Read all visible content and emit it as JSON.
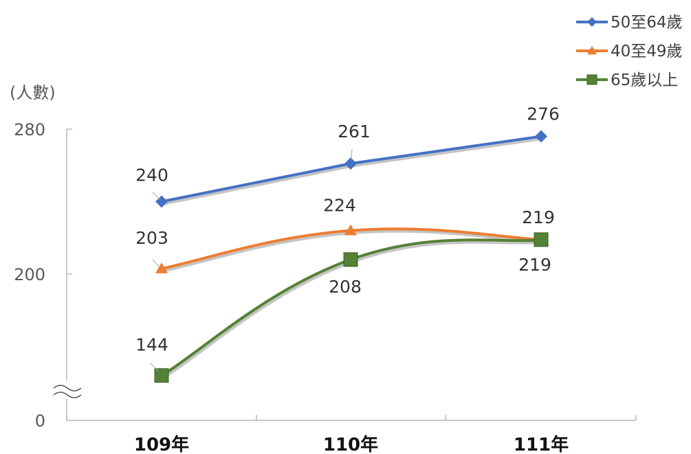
{
  "chart_data": {
    "type": "line",
    "ylabel": "(人數)",
    "categories": [
      "109年",
      "110年",
      "111年"
    ],
    "yticks": [
      "0",
      "200",
      "280"
    ],
    "axis_break": true,
    "grid": false,
    "legend_position": "top-right",
    "series": [
      {
        "name": "50至64歲",
        "values": [
          240,
          261,
          276
        ],
        "labels": [
          "240",
          "261",
          "276"
        ],
        "color": "#4472C4",
        "marker": "diamond",
        "smooth": false
      },
      {
        "name": "40至49歲",
        "values": [
          203,
          224,
          219
        ],
        "labels": [
          "203",
          "224",
          "219"
        ],
        "color": "#ED7D31",
        "marker": "triangle",
        "smooth": true
      },
      {
        "name": "65歲以上",
        "values": [
          144,
          208,
          219
        ],
        "labels": [
          "144",
          "208",
          "219"
        ],
        "color": "#548235",
        "marker": "square",
        "smooth": true
      }
    ]
  }
}
